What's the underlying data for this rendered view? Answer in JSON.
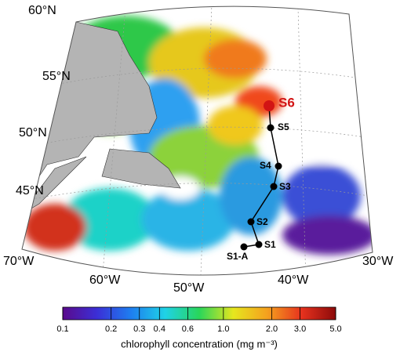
{
  "map": {
    "lat_labels": [
      "60°N",
      "55°N",
      "50°N",
      "45°N"
    ],
    "lon_labels": [
      "70°W",
      "60°W",
      "50°W",
      "40°W",
      "30°W"
    ],
    "stations": [
      "S6",
      "S5",
      "S4",
      "S3",
      "S2",
      "S1",
      "S1-A"
    ]
  },
  "colorbar": {
    "scale": "log",
    "lim": [
      0.1,
      5.0
    ],
    "ticks": [
      0.1,
      0.2,
      0.3,
      0.4,
      0.6,
      {
        "value": 1.0,
        "label": "1.0"
      },
      {
        "value": 2.0,
        "label": "2.0"
      },
      {
        "value": 3.0,
        "label": "3.0"
      },
      {
        "value": 5.0,
        "label": "5.0"
      }
    ],
    "colors": [
      "#5a0a8c",
      "#3b2fd6",
      "#1e7ef0",
      "#1fd2e6",
      "#29d65a",
      "#e6e61e",
      "#f5a01e",
      "#e6321e",
      "#8c0a0a"
    ],
    "label": "chlorophyll concentration (mg m⁻³)"
  }
}
